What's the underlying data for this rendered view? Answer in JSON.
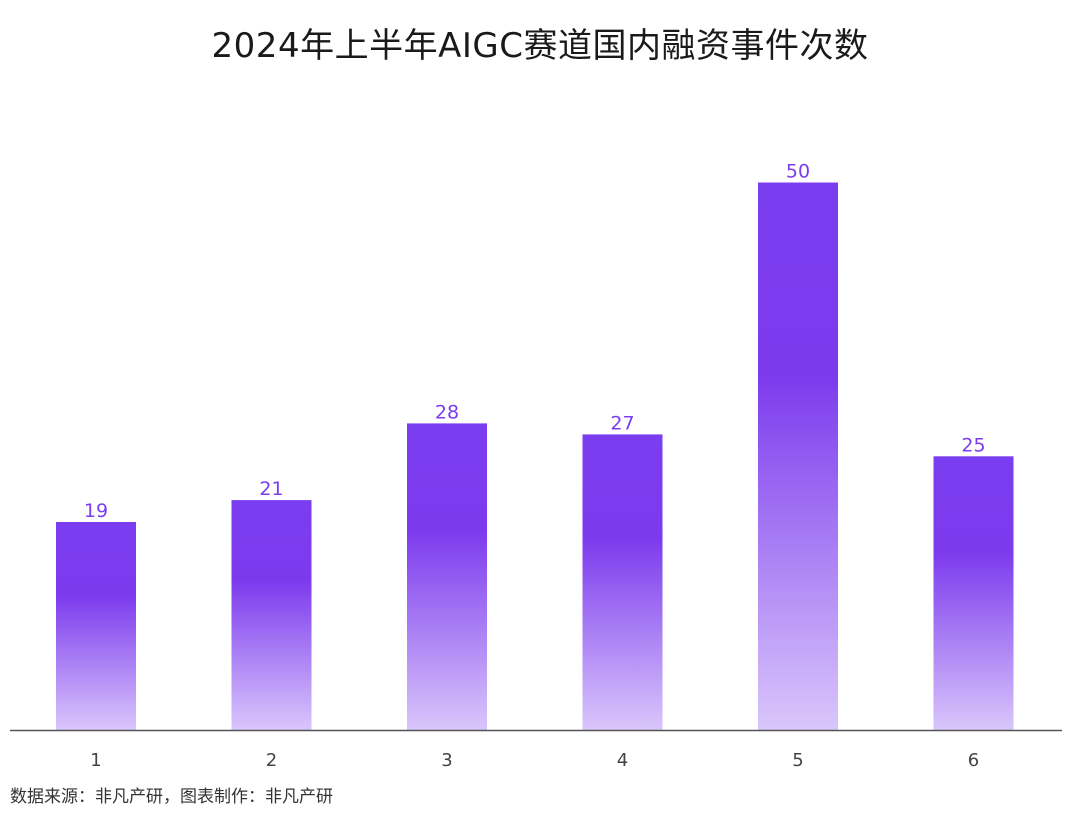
{
  "chart_data": {
    "type": "bar",
    "title": "2024年上半年AIGC赛道国内融资事件次数",
    "categories": [
      "1",
      "2",
      "3",
      "4",
      "5",
      "6"
    ],
    "values": [
      19,
      21,
      28,
      27,
      50,
      25
    ],
    "xlabel": "",
    "ylabel": "",
    "ylim": [
      0,
      52
    ],
    "grid": false,
    "legend": "none",
    "data_labels": true,
    "colors": {
      "bar_top": "#7b3df0",
      "bar_mid": "#7c3aed",
      "bar_bottom": "#d9c6fb",
      "label": "#7b3df0",
      "axis": "#555555",
      "tick_label": "#444444"
    }
  },
  "footer": {
    "source": "数据来源：非凡产研，图表制作：非凡产研"
  }
}
